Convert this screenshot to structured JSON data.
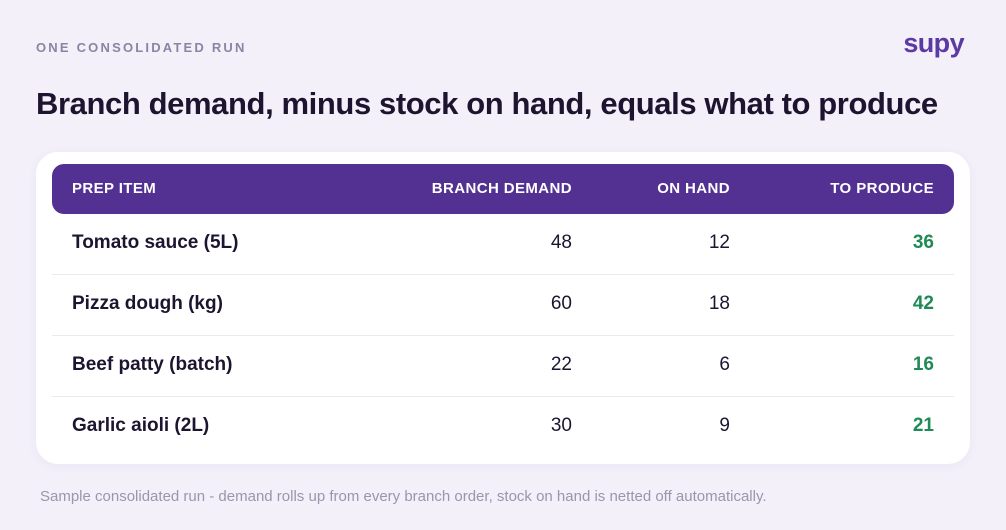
{
  "header": {
    "eyebrow": "ONE CONSOLIDATED RUN",
    "logo_text": "supy",
    "title": "Branch demand, minus stock on hand, equals what to produce"
  },
  "table": {
    "columns": {
      "item": "PREP ITEM",
      "demand": "BRANCH DEMAND",
      "on_hand": "ON HAND",
      "to_produce": "TO PRODUCE"
    },
    "rows": [
      {
        "item": "Tomato sauce (5L)",
        "demand": "48",
        "on_hand": "12",
        "to_produce": "36"
      },
      {
        "item": "Pizza dough (kg)",
        "demand": "60",
        "on_hand": "18",
        "to_produce": "42"
      },
      {
        "item": "Beef patty (batch)",
        "demand": "22",
        "on_hand": "6",
        "to_produce": "16"
      },
      {
        "item": "Garlic aioli (2L)",
        "demand": "30",
        "on_hand": "9",
        "to_produce": "21"
      }
    ]
  },
  "footnote": "Sample consolidated run - demand rolls up from every branch order, stock on hand is netted off automatically.",
  "colors": {
    "background": "#f3f0fa",
    "header_bar": "#523192",
    "brand": "#5b3aa3",
    "produce_value": "#1f8a55"
  }
}
